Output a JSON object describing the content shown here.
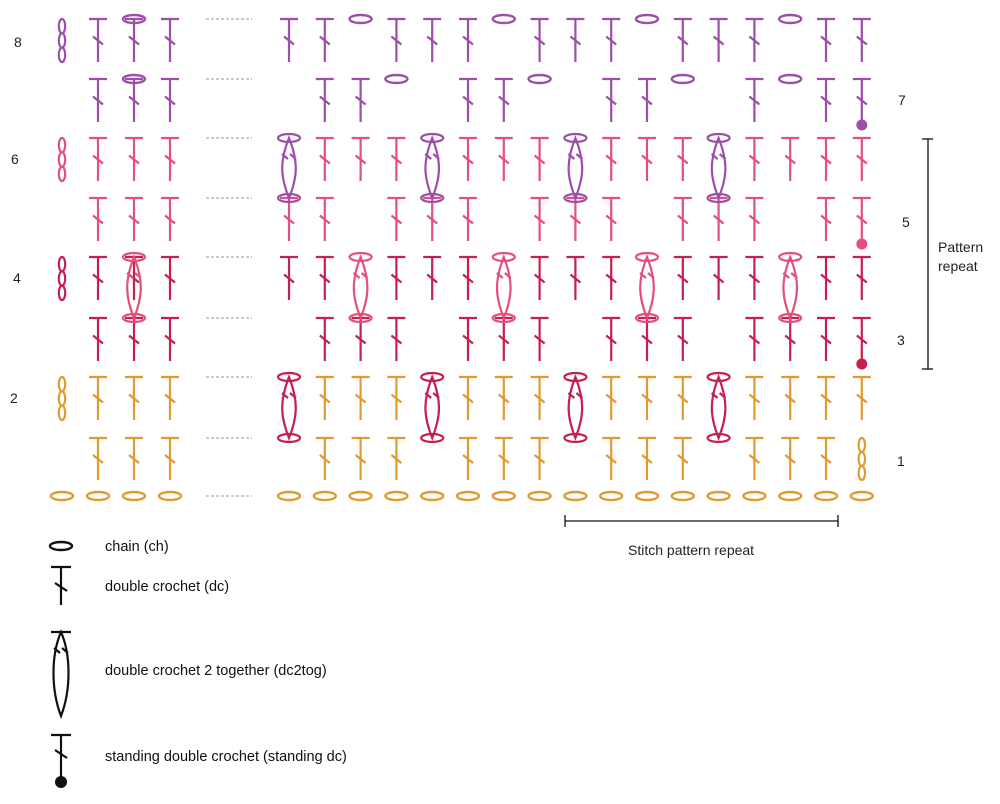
{
  "colors": {
    "row1": "#E09A30",
    "row2": "#E09A30",
    "row3": "#C5204E",
    "row4": "#C5204E",
    "row5": "#E2507C",
    "row6": "#E2507C",
    "row7": "#9B4FA8",
    "row8": "#9B4FA8",
    "legend": "#111111",
    "gap_dash": "#9A9A9A"
  },
  "row_labels": {
    "left": [
      "2",
      "4",
      "6",
      "8"
    ],
    "right": [
      "1",
      "3",
      "5",
      "7"
    ]
  },
  "annotations": {
    "pattern_repeat_line1": "Pattern",
    "pattern_repeat_line2": "repeat",
    "stitch_pattern_repeat": "Stitch pattern repeat"
  },
  "legend": {
    "items": [
      {
        "symbol": "chain-icon",
        "label": "chain (ch)"
      },
      {
        "symbol": "double-crochet-icon",
        "label": "double crochet (dc)"
      },
      {
        "symbol": "dc2tog-icon",
        "label": "double crochet 2 together (dc2tog)"
      },
      {
        "symbol": "standing-dc-icon",
        "label": "standing double crochet (standing dc)"
      }
    ]
  }
}
